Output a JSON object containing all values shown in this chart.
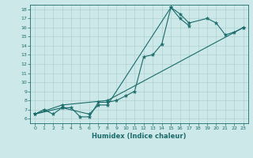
{
  "title": "",
  "xlabel": "Humidex (Indice chaleur)",
  "ylabel": "",
  "xlim": [
    -0.5,
    23.5
  ],
  "ylim": [
    5.5,
    18.5
  ],
  "xticks": [
    0,
    1,
    2,
    3,
    4,
    5,
    6,
    7,
    8,
    9,
    10,
    11,
    12,
    13,
    14,
    15,
    16,
    17,
    18,
    19,
    20,
    21,
    22,
    23
  ],
  "yticks": [
    6,
    7,
    8,
    9,
    10,
    11,
    12,
    13,
    14,
    15,
    16,
    17,
    18
  ],
  "background_color": "#cde8e8",
  "grid_color": "#b0d0d0",
  "line_color": "#1a6b6b",
  "line1_x": [
    0,
    1,
    2,
    3,
    4,
    5,
    6,
    7,
    8,
    9,
    10,
    11,
    12,
    13,
    14,
    15,
    16,
    17
  ],
  "line1_y": [
    6.5,
    7.0,
    6.5,
    7.2,
    7.2,
    6.2,
    6.2,
    7.8,
    7.8,
    8.0,
    8.5,
    9.0,
    12.8,
    13.0,
    14.2,
    18.2,
    17.0,
    16.2
  ],
  "line2_x": [
    0,
    3,
    6,
    7,
    8,
    15,
    16,
    17,
    19,
    20,
    21,
    22,
    23
  ],
  "line2_y": [
    6.5,
    7.2,
    6.5,
    7.5,
    7.5,
    18.2,
    17.5,
    16.5,
    17.0,
    16.5,
    15.2,
    15.5,
    16.0
  ],
  "line3_x": [
    0,
    3,
    8,
    23
  ],
  "line3_y": [
    6.5,
    7.5,
    8.0,
    16.0
  ],
  "xlabel_fontsize": 6,
  "tick_fontsize": 4.5
}
